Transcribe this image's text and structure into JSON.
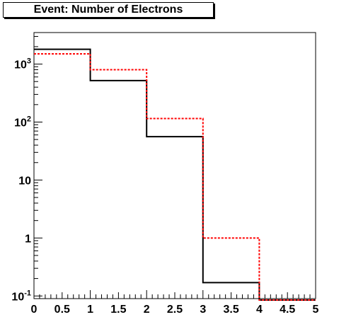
{
  "chart_data": {
    "type": "histogram",
    "title": "Event: Number of Electrons",
    "xlabel": "",
    "ylabel": "",
    "xlim": [
      0,
      5
    ],
    "ylim": [
      0.09,
      3500
    ],
    "y_scale": "log",
    "bin_edges": [
      0,
      1,
      2,
      3,
      4,
      5
    ],
    "x_tick_labels": [
      "0",
      "0.5",
      "1",
      "1.5",
      "2",
      "2.5",
      "3",
      "3.5",
      "4",
      "4.5",
      "5"
    ],
    "y_tick_labels": [
      {
        "value": 0.1,
        "base": "10",
        "exp": "-1"
      },
      {
        "value": 1,
        "base": "1",
        "exp": ""
      },
      {
        "value": 10,
        "base": "10",
        "exp": ""
      },
      {
        "value": 100,
        "base": "10",
        "exp": "2"
      },
      {
        "value": 1000,
        "base": "10",
        "exp": "3"
      }
    ],
    "series": [
      {
        "values": [
          1800,
          520,
          56,
          0.17,
          0
        ],
        "color": "#000000",
        "style": "solid"
      },
      {
        "values": [
          1500,
          800,
          115,
          1.0,
          0
        ],
        "color": "#ff0000",
        "style": "dashed"
      }
    ],
    "grid": false,
    "legend": "none"
  }
}
